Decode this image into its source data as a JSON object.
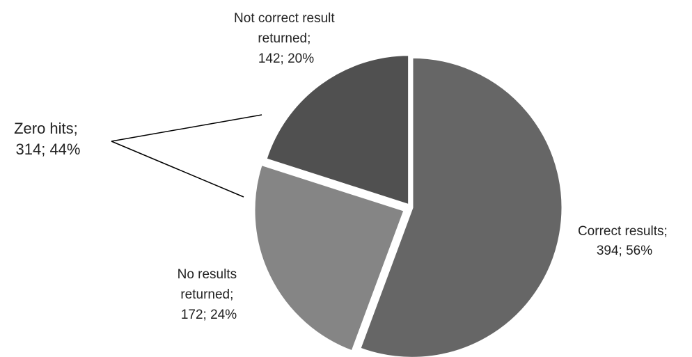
{
  "chart_data": {
    "type": "pie",
    "title": "",
    "slices": [
      {
        "label_lines": [
          "Correct results;",
          "394; 56%"
        ],
        "value": 394,
        "percent": 56,
        "color": "#666666"
      },
      {
        "label_lines": [
          "No results",
          "returned;",
          "172; 24%"
        ],
        "value": 172,
        "percent": 24,
        "color": "#858585"
      },
      {
        "label_lines": [
          "Not correct result",
          "returned;",
          "142; 20%"
        ],
        "value": 142,
        "percent": 20,
        "color": "#505050"
      }
    ],
    "group_annotation": {
      "label_lines": [
        "Zero hits;",
        "314; 44%"
      ],
      "value": 314,
      "percent": 44,
      "covers": [
        "No results returned",
        "Not correct result returned"
      ]
    }
  }
}
